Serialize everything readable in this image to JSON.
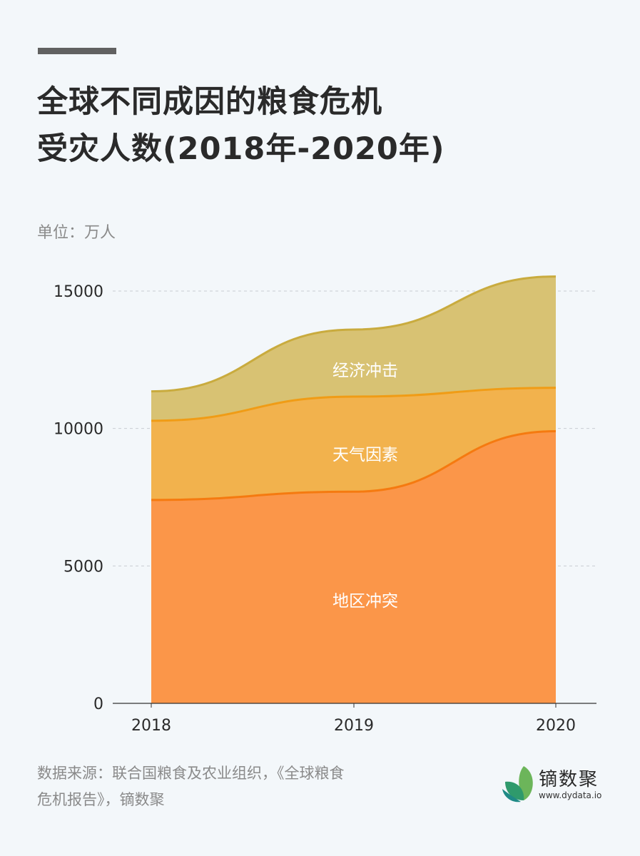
{
  "header": {
    "title_line1": "全球不同成因的粮食危机",
    "title_line2": "受灾人数(2018年-2020年)",
    "unit": "单位：万人"
  },
  "footer": {
    "source_line1": "数据来源：联合国粮食及农业组织，《全球粮食",
    "source_line2": "危机报告》，镝数聚",
    "logo_name": "镝数聚",
    "logo_url": "www.dydata.io"
  },
  "colors": {
    "conflict_fill": "#fb9649",
    "conflict_line": "#f57a10",
    "weather_fill": "#f2b24d",
    "weather_line": "#f09c16",
    "economic_fill": "#d8c273",
    "economic_line": "#c9ab3e",
    "background": "#f3f7fa"
  },
  "chart_data": {
    "type": "area",
    "stacked": true,
    "title": "全球不同成因的粮食危机受灾人数(2018年-2020年)",
    "xlabel": "",
    "ylabel": "单位：万人",
    "categories": [
      "2018",
      "2019",
      "2020"
    ],
    "series": [
      {
        "name": "地区冲突",
        "values": [
          7400,
          7700,
          9900
        ]
      },
      {
        "name": "天气因素",
        "values": [
          2880,
          3460,
          1580
        ]
      },
      {
        "name": "经济冲击",
        "values": [
          1070,
          2440,
          4050
        ]
      }
    ],
    "yticks": [
      0,
      5000,
      10000,
      15000
    ],
    "ylim": [
      0,
      15000
    ],
    "grid": "horizontal dashed",
    "legend": "inline labels"
  }
}
